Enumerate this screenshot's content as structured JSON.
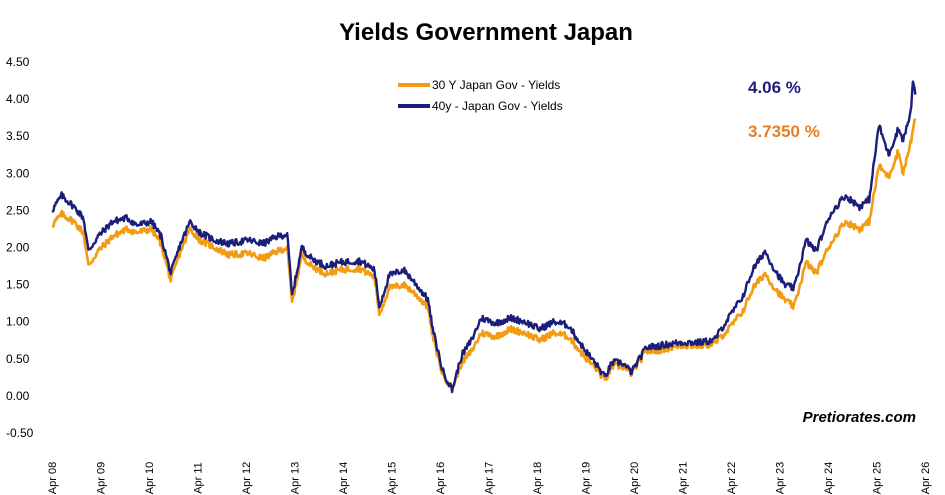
{
  "chart_data": {
    "type": "line",
    "title": "Yields Government Japan",
    "xlabel": "",
    "ylabel": "",
    "ylim": [
      -0.5,
      4.5
    ],
    "y_ticks": [
      "4.50",
      "4.00",
      "3.50",
      "3.00",
      "2.50",
      "2.00",
      "1.50",
      "1.00",
      "0.50",
      "0.00",
      "-0.50"
    ],
    "x_ticks": [
      "Apr 08",
      "Apr 09",
      "Apr 10",
      "Apr 11",
      "Apr 12",
      "Apr 13",
      "Apr 14",
      "Apr 15",
      "Apr 16",
      "Apr 17",
      "Apr 18",
      "Apr 19",
      "Apr 20",
      "Apr 21",
      "Apr 22",
      "Apr 23",
      "Apr 24",
      "Apr 25",
      "Apr 26"
    ],
    "xlim": [
      2008.25,
      2026.25
    ],
    "grid": false,
    "legend_position": "top-center",
    "series": [
      {
        "name": "30 Y Japan Gov - Yields",
        "color": "#F39C12",
        "points": [
          [
            2008.25,
            2.3
          ],
          [
            2008.45,
            2.45
          ],
          [
            2008.7,
            2.35
          ],
          [
            2008.9,
            2.2
          ],
          [
            2009.0,
            1.75
          ],
          [
            2009.2,
            1.95
          ],
          [
            2009.5,
            2.15
          ],
          [
            2009.8,
            2.25
          ],
          [
            2010.0,
            2.2
          ],
          [
            2010.3,
            2.25
          ],
          [
            2010.5,
            2.05
          ],
          [
            2010.7,
            1.55
          ],
          [
            2010.9,
            1.95
          ],
          [
            2011.1,
            2.25
          ],
          [
            2011.3,
            2.1
          ],
          [
            2011.6,
            2.0
          ],
          [
            2011.9,
            1.9
          ],
          [
            2012.3,
            1.92
          ],
          [
            2012.6,
            1.85
          ],
          [
            2012.9,
            1.95
          ],
          [
            2013.1,
            2.0
          ],
          [
            2013.2,
            1.25
          ],
          [
            2013.4,
            1.9
          ],
          [
            2013.6,
            1.75
          ],
          [
            2013.9,
            1.65
          ],
          [
            2014.2,
            1.7
          ],
          [
            2014.6,
            1.72
          ],
          [
            2014.9,
            1.6
          ],
          [
            2015.0,
            1.1
          ],
          [
            2015.2,
            1.45
          ],
          [
            2015.5,
            1.5
          ],
          [
            2015.7,
            1.4
          ],
          [
            2016.0,
            1.2
          ],
          [
            2016.1,
            0.8
          ],
          [
            2016.3,
            0.3
          ],
          [
            2016.5,
            0.1
          ],
          [
            2016.7,
            0.45
          ],
          [
            2016.9,
            0.6
          ],
          [
            2017.1,
            0.85
          ],
          [
            2017.4,
            0.8
          ],
          [
            2017.7,
            0.9
          ],
          [
            2018.0,
            0.85
          ],
          [
            2018.3,
            0.75
          ],
          [
            2018.6,
            0.85
          ],
          [
            2018.9,
            0.8
          ],
          [
            2019.2,
            0.55
          ],
          [
            2019.5,
            0.35
          ],
          [
            2019.65,
            0.2
          ],
          [
            2019.8,
            0.4
          ],
          [
            2020.0,
            0.4
          ],
          [
            2020.2,
            0.3
          ],
          [
            2020.5,
            0.6
          ],
          [
            2020.8,
            0.62
          ],
          [
            2021.2,
            0.68
          ],
          [
            2021.6,
            0.68
          ],
          [
            2021.9,
            0.7
          ],
          [
            2022.2,
            0.9
          ],
          [
            2022.5,
            1.15
          ],
          [
            2022.7,
            1.45
          ],
          [
            2022.95,
            1.65
          ],
          [
            2023.15,
            1.45
          ],
          [
            2023.35,
            1.3
          ],
          [
            2023.55,
            1.2
          ],
          [
            2023.8,
            1.8
          ],
          [
            2024.0,
            1.65
          ],
          [
            2024.3,
            2.05
          ],
          [
            2024.6,
            2.35
          ],
          [
            2024.9,
            2.25
          ],
          [
            2025.1,
            2.35
          ],
          [
            2025.3,
            3.1
          ],
          [
            2025.5,
            2.95
          ],
          [
            2025.7,
            3.3
          ],
          [
            2025.8,
            3.0
          ],
          [
            2025.95,
            3.4
          ],
          [
            2026.05,
            3.735
          ]
        ]
      },
      {
        "name": "40y - Japan Gov - Yields",
        "color": "#1B1F7A",
        "points": [
          [
            2008.25,
            2.5
          ],
          [
            2008.45,
            2.7
          ],
          [
            2008.7,
            2.55
          ],
          [
            2008.9,
            2.4
          ],
          [
            2009.0,
            1.95
          ],
          [
            2009.2,
            2.15
          ],
          [
            2009.5,
            2.35
          ],
          [
            2009.8,
            2.4
          ],
          [
            2010.0,
            2.3
          ],
          [
            2010.3,
            2.35
          ],
          [
            2010.5,
            2.15
          ],
          [
            2010.7,
            1.65
          ],
          [
            2010.9,
            2.05
          ],
          [
            2011.1,
            2.35
          ],
          [
            2011.3,
            2.2
          ],
          [
            2011.6,
            2.1
          ],
          [
            2011.9,
            2.05
          ],
          [
            2012.3,
            2.1
          ],
          [
            2012.6,
            2.05
          ],
          [
            2012.9,
            2.15
          ],
          [
            2013.1,
            2.18
          ],
          [
            2013.2,
            1.35
          ],
          [
            2013.4,
            2.0
          ],
          [
            2013.6,
            1.85
          ],
          [
            2013.9,
            1.75
          ],
          [
            2014.2,
            1.8
          ],
          [
            2014.6,
            1.82
          ],
          [
            2014.9,
            1.7
          ],
          [
            2015.0,
            1.2
          ],
          [
            2015.2,
            1.62
          ],
          [
            2015.5,
            1.7
          ],
          [
            2015.7,
            1.55
          ],
          [
            2016.0,
            1.3
          ],
          [
            2016.1,
            0.9
          ],
          [
            2016.3,
            0.35
          ],
          [
            2016.5,
            0.08
          ],
          [
            2016.7,
            0.55
          ],
          [
            2016.9,
            0.75
          ],
          [
            2017.1,
            1.05
          ],
          [
            2017.4,
            0.98
          ],
          [
            2017.7,
            1.05
          ],
          [
            2018.0,
            1.0
          ],
          [
            2018.3,
            0.9
          ],
          [
            2018.6,
            1.0
          ],
          [
            2018.9,
            0.95
          ],
          [
            2019.2,
            0.65
          ],
          [
            2019.5,
            0.4
          ],
          [
            2019.65,
            0.25
          ],
          [
            2019.8,
            0.45
          ],
          [
            2020.0,
            0.45
          ],
          [
            2020.2,
            0.32
          ],
          [
            2020.5,
            0.65
          ],
          [
            2020.8,
            0.68
          ],
          [
            2021.2,
            0.72
          ],
          [
            2021.6,
            0.72
          ],
          [
            2021.9,
            0.75
          ],
          [
            2022.2,
            1.05
          ],
          [
            2022.5,
            1.35
          ],
          [
            2022.7,
            1.7
          ],
          [
            2022.95,
            1.95
          ],
          [
            2023.15,
            1.7
          ],
          [
            2023.35,
            1.5
          ],
          [
            2023.55,
            1.45
          ],
          [
            2023.8,
            2.1
          ],
          [
            2024.0,
            1.95
          ],
          [
            2024.3,
            2.45
          ],
          [
            2024.6,
            2.7
          ],
          [
            2024.9,
            2.55
          ],
          [
            2025.1,
            2.65
          ],
          [
            2025.3,
            3.65
          ],
          [
            2025.5,
            3.25
          ],
          [
            2025.7,
            3.6
          ],
          [
            2025.8,
            3.45
          ],
          [
            2025.95,
            3.8
          ],
          [
            2026.0,
            4.22
          ],
          [
            2026.05,
            4.06
          ]
        ]
      }
    ],
    "annotations": {
      "value_40y": "4.06 %",
      "value_30y": "3.7350 %",
      "color_40y": "#1B1F7A",
      "color_30y": "#E67E22"
    },
    "watermark": "Pretiorates.com"
  }
}
